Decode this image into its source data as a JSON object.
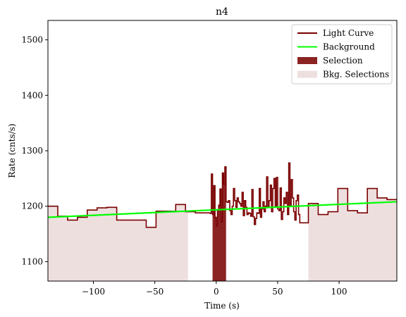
{
  "chart_data": {
    "type": "line",
    "title": "n4",
    "xlabel": "Time (s)",
    "ylabel": "Rate (cnts/s)",
    "xlim": [
      -137,
      147
    ],
    "ylim": [
      1065,
      1535
    ],
    "x_ticks": [
      -100,
      -50,
      0,
      50,
      100
    ],
    "x_tick_labels": [
      "−100",
      "−50",
      "0",
      "50",
      "100"
    ],
    "y_ticks": [
      1100,
      1200,
      1300,
      1400,
      1500
    ],
    "y_tick_labels": [
      "1100",
      "1200",
      "1300",
      "1400",
      "1500"
    ],
    "legend": {
      "position": "top-right",
      "entries": [
        {
          "label": "Light Curve",
          "kind": "line",
          "color": "#7a0000"
        },
        {
          "label": "Background",
          "kind": "line",
          "color": "#00ff00"
        },
        {
          "label": "Selection",
          "kind": "patch",
          "color": "#8b2323"
        },
        {
          "label": "Bkg. Selections",
          "kind": "patch",
          "color": "#eedfdf"
        }
      ]
    },
    "colors": {
      "light_curve": "#7a0000",
      "background": "#00ff00",
      "selection": "#8b2323",
      "bkg_selection": "#eedfdf"
    },
    "background_line": {
      "x": [
        -137,
        147
      ],
      "y": [
        1180,
        1208
      ]
    },
    "bkg_selections": [
      {
        "start": -137,
        "end": -23
      },
      {
        "start": 75,
        "end": 147
      }
    ],
    "selection": {
      "start": -3,
      "end": 8
    },
    "light_curve": {
      "x": [
        -137,
        -129,
        -121,
        -113,
        -105,
        -97,
        -89,
        -81,
        -73,
        -65,
        -57,
        -49,
        -41,
        -33,
        -25,
        -17,
        -5,
        -4,
        -3,
        -2,
        -1,
        0,
        1,
        2,
        3,
        4,
        5,
        6,
        7,
        8,
        9,
        10,
        11,
        12,
        13,
        14,
        15,
        16,
        17,
        18,
        19,
        20,
        21,
        22,
        23,
        24,
        25,
        26,
        27,
        28,
        29,
        30,
        31,
        32,
        33,
        34,
        35,
        36,
        37,
        38,
        39,
        40,
        41,
        42,
        43,
        44,
        45,
        46,
        47,
        48,
        49,
        50,
        51,
        52,
        53,
        54,
        55,
        56,
        57,
        58,
        59,
        60,
        61,
        62,
        63,
        64,
        65,
        66,
        67,
        68,
        75,
        83,
        91,
        99,
        107,
        115,
        123,
        131,
        139,
        147
      ],
      "y": [
        1200,
        1182,
        1175,
        1180,
        1193,
        1197,
        1198,
        1175,
        1175,
        1175,
        1162,
        1191,
        1191,
        1203,
        1190,
        1188,
        1187,
        1258,
        1185,
        1237,
        1180,
        1165,
        1193,
        1202,
        1231,
        1172,
        1260,
        1240,
        1271,
        1208,
        1207,
        1210,
        1192,
        1185,
        1200,
        1232,
        1210,
        1198,
        1215,
        1208,
        1205,
        1200,
        1225,
        1183,
        1210,
        1198,
        1185,
        1188,
        1187,
        1182,
        1230,
        1181,
        1167,
        1178,
        1188,
        1187,
        1232,
        1180,
        1195,
        1208,
        1190,
        1200,
        1253,
        1200,
        1210,
        1238,
        1190,
        1232,
        1250,
        1198,
        1252,
        1195,
        1192,
        1233,
        1176,
        1190,
        1215,
        1205,
        1225,
        1185,
        1278,
        1200,
        1248,
        1215,
        1190,
        1175,
        1210,
        1220,
        1185,
        1170,
        1205,
        1185,
        1190,
        1232,
        1192,
        1188,
        1232,
        1215,
        1212,
        1208
      ]
    }
  }
}
